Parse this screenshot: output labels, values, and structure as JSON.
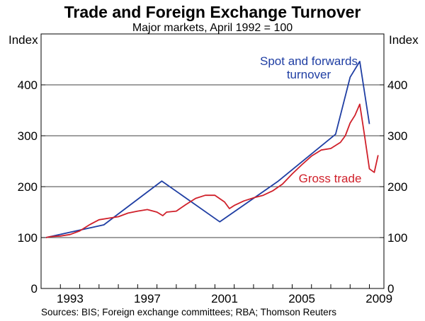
{
  "chart_data": {
    "type": "line",
    "title": "Trade and Foreign Exchange Turnover",
    "subtitle": "Major markets, April 1992 = 100",
    "ylabel_left": "Index",
    "ylabel_right": "Index",
    "source": "Sources: BIS; Foreign exchange committees; RBA; Thomson Reuters",
    "xlim": [
      1992.0,
      2009.75
    ],
    "ylim": [
      0,
      500
    ],
    "y_ticks": [
      0,
      100,
      200,
      300,
      400
    ],
    "x_ticks": [
      1993,
      1997,
      2001,
      2005,
      2009
    ],
    "grid": true,
    "series": [
      {
        "name": "Spot and forwards turnover",
        "color": "#1f3ea3",
        "x": [
          1992.25,
          1995.25,
          1998.25,
          2001.25,
          2004.25,
          2007.25,
          2008.0,
          2008.5,
          2009.0
        ],
        "y": [
          100,
          125,
          211,
          131,
          210,
          303,
          415,
          446,
          323
        ]
      },
      {
        "name": "Gross trade",
        "color": "#d0202a",
        "x": [
          1992.25,
          1992.5,
          1993.0,
          1993.5,
          1994.0,
          1994.5,
          1995.0,
          1995.5,
          1996.0,
          1996.5,
          1997.0,
          1997.5,
          1998.0,
          1998.3,
          1998.5,
          1999.0,
          1999.5,
          2000.0,
          2000.5,
          2001.0,
          2001.5,
          2001.75,
          2002.0,
          2002.5,
          2003.0,
          2003.5,
          2004.0,
          2004.5,
          2005.0,
          2005.5,
          2006.0,
          2006.5,
          2007.0,
          2007.5,
          2007.75,
          2008.0,
          2008.25,
          2008.5,
          2008.75,
          2009.0,
          2009.25,
          2009.45
        ],
        "y": [
          100,
          102,
          103,
          106,
          113,
          125,
          135,
          138,
          141,
          148,
          152,
          155,
          150,
          143,
          150,
          152,
          165,
          177,
          183,
          183,
          170,
          157,
          163,
          172,
          178,
          183,
          192,
          205,
          225,
          243,
          260,
          272,
          275,
          287,
          300,
          325,
          340,
          362,
          300,
          235,
          228,
          262
        ]
      }
    ],
    "annotations": [
      {
        "lines": [
          "Spot and forwards",
          "turnover"
        ],
        "series": "Spot and forwards turnover",
        "color": "#1f3ea3"
      },
      {
        "lines": [
          "Gross trade"
        ],
        "series": "Gross trade",
        "color": "#d0202a"
      }
    ]
  }
}
